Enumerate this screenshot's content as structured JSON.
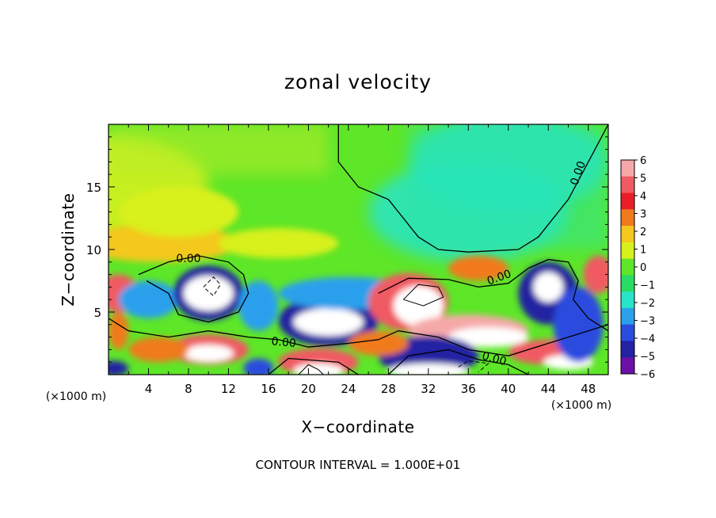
{
  "chart_data": {
    "type": "heatmap",
    "title": "zonal velocity",
    "xlabel": "X−coordinate",
    "ylabel": "Z−coordinate",
    "x_unit_label": "(×1000 m)",
    "z_unit_label": "(×1000 m)",
    "xlim": [
      0,
      50
    ],
    "ylim": [
      0,
      20
    ],
    "x_ticks": [
      4,
      8,
      12,
      16,
      20,
      24,
      28,
      32,
      36,
      40,
      44,
      48
    ],
    "y_ticks": [
      5,
      10,
      15
    ],
    "footer": "CONTOUR INTERVAL = 1.000E+01",
    "contour_label": "0.00",
    "contour_label_positions": [
      {
        "x": 8,
        "z": 9.0,
        "angle": 0
      },
      {
        "x": 17.5,
        "z": 2.3,
        "angle": 5
      },
      {
        "x": 39.2,
        "z": 7.5,
        "angle": -20
      },
      {
        "x": 38.5,
        "z": 1.0,
        "angle": 15
      },
      {
        "x": 47.3,
        "z": 16.0,
        "angle": -70
      }
    ],
    "colorbar": {
      "labels": [
        "6",
        "5",
        "4",
        "3",
        "2",
        "1",
        "0",
        "−1",
        "−2",
        "−3",
        "−4",
        "−5",
        "−6"
      ],
      "colors": [
        "#f6a8a8",
        "#f05a62",
        "#ea1e28",
        "#f07a1c",
        "#f4c81e",
        "#d8f01e",
        "#5ee628",
        "#28dc64",
        "#28e4c8",
        "#2aa0ec",
        "#2a4cde",
        "#2222a2",
        "#6c0fa8"
      ]
    },
    "blobs": [
      {
        "x": 1,
        "z": 6.5,
        "rx": 2.0,
        "rz": 1.5,
        "v": 5
      },
      {
        "x": 4,
        "z": 6.0,
        "rx": 3.0,
        "rz": 1.5,
        "v": -3
      },
      {
        "x": 10,
        "z": 6.5,
        "rx": 3.5,
        "rz": 2.2,
        "v": -4.5
      },
      {
        "x": 10,
        "z": 6.5,
        "rx": 2.5,
        "rz": 1.4,
        "v": -7
      },
      {
        "x": 15,
        "z": 5.5,
        "rx": 2.0,
        "rz": 2.0,
        "v": -3
      },
      {
        "x": 22,
        "z": 4.3,
        "rx": 5.0,
        "rz": 2.0,
        "v": -5
      },
      {
        "x": 22,
        "z": 4.2,
        "rx": 3.5,
        "rz": 1.1,
        "v": -7
      },
      {
        "x": 24,
        "z": 6.5,
        "rx": 7.0,
        "rz": 1.3,
        "v": -3
      },
      {
        "x": 10,
        "z": 2.0,
        "rx": 4.0,
        "rz": 1.2,
        "v": 5
      },
      {
        "x": 10,
        "z": 1.7,
        "rx": 2.5,
        "rz": 0.7,
        "v": 7
      },
      {
        "x": 5,
        "z": 2.0,
        "rx": 3.0,
        "rz": 1.0,
        "v": 3
      },
      {
        "x": 21,
        "z": 1.0,
        "rx": 4.0,
        "rz": 1.1,
        "v": 5
      },
      {
        "x": 21,
        "z": 0.3,
        "rx": 2.5,
        "rz": 0.6,
        "v": 7
      },
      {
        "x": 30,
        "z": 5.8,
        "rx": 4.0,
        "rz": 2.3,
        "v": 5
      },
      {
        "x": 31,
        "z": 5.5,
        "rx": 2.5,
        "rz": 1.6,
        "v": 7
      },
      {
        "x": 36,
        "z": 3.5,
        "rx": 6.0,
        "rz": 1.3,
        "v": 6
      },
      {
        "x": 38,
        "z": 3.0,
        "rx": 4.0,
        "rz": 0.8,
        "v": 7
      },
      {
        "x": 44,
        "z": 1.8,
        "rx": 4.0,
        "rz": 1.0,
        "v": 5
      },
      {
        "x": 46,
        "z": 1.0,
        "rx": 2.5,
        "rz": 0.6,
        "v": 7
      },
      {
        "x": 32,
        "z": 1.5,
        "rx": 5.0,
        "rz": 1.6,
        "v": -4.5
      },
      {
        "x": 32,
        "z": 0.3,
        "rx": 4.0,
        "rz": 0.6,
        "v": -7
      },
      {
        "x": 15,
        "z": 0.5,
        "rx": 1.5,
        "rz": 0.8,
        "v": -4
      },
      {
        "x": 0.5,
        "z": 0.5,
        "rx": 1.5,
        "rz": 0.6,
        "v": -5
      },
      {
        "x": 44,
        "z": 6.5,
        "rx": 3.0,
        "rz": 2.5,
        "v": -4.5
      },
      {
        "x": 44,
        "z": 7.0,
        "rx": 1.5,
        "rz": 1.2,
        "v": -7
      },
      {
        "x": 47,
        "z": 4.0,
        "rx": 2.5,
        "rz": 3.0,
        "v": -4
      },
      {
        "x": 49,
        "z": 8.0,
        "rx": 1.5,
        "rz": 1.5,
        "v": 5
      },
      {
        "x": 37,
        "z": 8.5,
        "rx": 3.0,
        "rz": 1.0,
        "v": 3.5
      },
      {
        "x": 5,
        "z": 10.5,
        "rx": 8.0,
        "rz": 1.5,
        "v": 2.2
      },
      {
        "x": 17,
        "z": 10.5,
        "rx": 6.0,
        "rz": 1.2,
        "v": 1.5
      },
      {
        "x": 7,
        "z": 13.0,
        "rx": 6.0,
        "rz": 2.0,
        "v": 1.2
      },
      {
        "x": 1,
        "z": 3.5,
        "rx": 1.0,
        "rz": 1.5,
        "v": 3
      },
      {
        "x": 27,
        "z": 2.5,
        "rx": 3.0,
        "rz": 1.0,
        "v": 3
      }
    ],
    "upper_gradient": [
      {
        "x": 0,
        "z": 15,
        "v": 1.2
      },
      {
        "x": 36,
        "z": 13,
        "v": -2.2
      },
      {
        "x": 40,
        "z": 17,
        "v": -1.5
      }
    ],
    "zero_contour_paths": [
      [
        [
          23,
          20
        ],
        [
          23,
          17
        ],
        [
          25,
          15
        ],
        [
          28,
          14
        ],
        [
          31,
          11
        ],
        [
          33,
          10
        ],
        [
          36,
          9.8
        ],
        [
          41,
          10
        ],
        [
          43,
          11
        ],
        [
          46,
          14
        ],
        [
          48,
          17
        ],
        [
          50,
          20
        ]
      ],
      [
        [
          3,
          8.0
        ],
        [
          6,
          9.0
        ],
        [
          9,
          9.5
        ],
        [
          12,
          9.0
        ],
        [
          13.5,
          8
        ],
        [
          14,
          6.5
        ],
        [
          13,
          5
        ],
        [
          10,
          4.2
        ],
        [
          7,
          4.8
        ],
        [
          6,
          6.5
        ],
        [
          3.8,
          7.5
        ]
      ],
      [
        [
          0,
          4.5
        ],
        [
          2,
          3.5
        ],
        [
          6,
          3.0
        ],
        [
          10,
          3.5
        ],
        [
          14,
          3.0
        ],
        [
          17,
          2.8
        ],
        [
          20,
          2.2
        ],
        [
          24,
          2.5
        ],
        [
          27,
          2.8
        ],
        [
          29,
          3.5
        ],
        [
          33,
          3.0
        ],
        [
          36,
          2.0
        ],
        [
          40,
          1.5
        ],
        [
          44,
          2.5
        ],
        [
          48,
          3.5
        ],
        [
          50,
          4.0
        ]
      ],
      [
        [
          27,
          6.5
        ],
        [
          30,
          7.7
        ],
        [
          34,
          7.6
        ],
        [
          37,
          7.0
        ],
        [
          40,
          7.3
        ],
        [
          42,
          8.5
        ],
        [
          44,
          9.2
        ],
        [
          46,
          9.0
        ],
        [
          47,
          7.5
        ],
        [
          46.5,
          6.0
        ],
        [
          48,
          4.5
        ],
        [
          50,
          3.5
        ]
      ],
      [
        [
          16,
          0
        ],
        [
          18,
          1.3
        ],
        [
          23,
          1.0
        ],
        [
          25,
          0
        ]
      ],
      [
        [
          28,
          0
        ],
        [
          30,
          1.5
        ],
        [
          34,
          2.0
        ],
        [
          37,
          1.2
        ],
        [
          40,
          0.8
        ],
        [
          42,
          0
        ]
      ]
    ],
    "neg_contour_paths": [
      [
        [
          9.5,
          7.0
        ],
        [
          10.5,
          7.8
        ],
        [
          11.2,
          7.2
        ],
        [
          10.5,
          6.3
        ],
        [
          9.5,
          7.0
        ]
      ],
      [
        [
          35,
          0.6
        ],
        [
          36,
          1.1
        ],
        [
          38,
          0.9
        ],
        [
          37,
          0.2
        ]
      ]
    ],
    "pos_contour_paths": [
      [
        [
          29.5,
          6.0
        ],
        [
          31,
          7.2
        ],
        [
          33,
          7.0
        ],
        [
          33.5,
          6.2
        ],
        [
          31.5,
          5.5
        ],
        [
          29.5,
          6.0
        ]
      ],
      [
        [
          19,
          0
        ],
        [
          20,
          0.8
        ],
        [
          21,
          0.4
        ],
        [
          21.5,
          0
        ]
      ]
    ]
  }
}
